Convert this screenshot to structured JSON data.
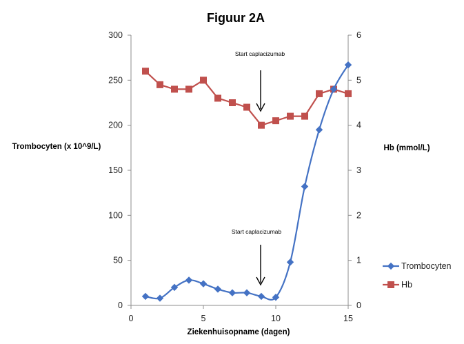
{
  "chart_data": {
    "type": "line",
    "title": "Figuur 2A",
    "xlabel": "Ziekenhuisopname (dagen)",
    "ylabel_left": "Trombocyten (x 10^9/L)",
    "ylabel_right": "Hb (mmol/L)",
    "xlim": [
      0,
      15
    ],
    "ylim_left": [
      0,
      300
    ],
    "ylim_right": [
      0,
      6
    ],
    "xticks": [
      0,
      5,
      10,
      15
    ],
    "yticks_left": [
      0,
      50,
      100,
      150,
      200,
      250,
      300
    ],
    "yticks_right": [
      0,
      1,
      2,
      3,
      4,
      5,
      6
    ],
    "grid": false,
    "legend_position": "right",
    "series": [
      {
        "name": "Trombocyten",
        "axis": "left",
        "color": "#4472C4",
        "marker": "diamond",
        "smooth": true,
        "x": [
          1,
          2,
          3,
          4,
          5,
          6,
          7,
          8,
          9,
          10,
          11,
          12,
          13,
          14,
          15
        ],
        "values": [
          10,
          8,
          20,
          28,
          24,
          18,
          14,
          14,
          10,
          9,
          48,
          132,
          195,
          240,
          267
        ]
      },
      {
        "name": "Hb",
        "axis": "right",
        "color": "#C0504D",
        "marker": "square",
        "smooth": false,
        "x": [
          1,
          2,
          3,
          4,
          5,
          6,
          7,
          8,
          9,
          10,
          11,
          12,
          13,
          14,
          15
        ],
        "values": [
          5.2,
          4.9,
          4.8,
          4.8,
          5.0,
          4.6,
          4.5,
          4.4,
          4.0,
          4.1,
          4.2,
          4.2,
          4.7,
          4.8,
          4.7
        ]
      }
    ],
    "annotations": [
      {
        "text": "Start caplacizumab",
        "x": 9,
        "target_series": "Hb"
      },
      {
        "text": "Start caplacizumab",
        "x": 9,
        "target_series": "Trombocyten"
      }
    ]
  }
}
